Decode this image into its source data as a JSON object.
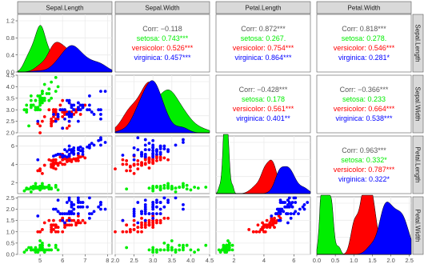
{
  "chart_data": {
    "type": "scatter",
    "variables": [
      "Sepal.Length",
      "Sepal.Width",
      "Petal.Length",
      "Petal.Width"
    ],
    "colors": {
      "setosa": "#00ee00",
      "versicolor": "#ff0000",
      "virginica": "#0000ff",
      "overall": "#595959",
      "panel_bg": "#ffffff",
      "grid": "#ebebeb",
      "strip_bg": "#d9d9d9"
    },
    "ranges": {
      "Sepal.Length": [
        4.0,
        8.2
      ],
      "Sepal.Width": [
        2.0,
        4.5
      ],
      "Petal.Length": [
        0.8,
        7.1
      ],
      "Petal.Width": [
        0.0,
        2.55
      ]
    },
    "x_ticks": {
      "Sepal.Length": [
        "5",
        "6",
        "7",
        "8"
      ],
      "Sepal.Width": [
        "2.0",
        "2.5",
        "3.0",
        "3.5",
        "4.0",
        "4.5"
      ],
      "Petal.Length": [
        "2",
        "4",
        "6"
      ],
      "Petal.Width": [
        "0.0",
        "0.5",
        "1.0",
        "1.5",
        "2.0",
        "2.5"
      ]
    },
    "y_ticks": {
      "Sepal.Length": [
        "0.0",
        "0.4",
        "0.8",
        "1.2"
      ],
      "Sepal.Width": [
        "2.0",
        "2.5",
        "3.0",
        "3.5",
        "4.0",
        "4.5"
      ],
      "Petal.Length": [
        "2",
        "4",
        "6"
      ],
      "Petal.Width": [
        "0.0",
        "0.5",
        "1.0",
        "1.5",
        "2.0",
        "2.5"
      ]
    },
    "density_ylim": [
      0,
      1.35
    ],
    "correlations": [
      {
        "row": 0,
        "col": 1,
        "lines": [
          "Corr: −0.118",
          "setosa: 0.743***",
          "versicolor: 0.526***",
          "virginica: 0.457***"
        ]
      },
      {
        "row": 0,
        "col": 2,
        "lines": [
          "Corr: 0.872***",
          "setosa: 0.267.",
          "versicolor: 0.754***",
          "virginica: 0.864***"
        ]
      },
      {
        "row": 0,
        "col": 3,
        "lines": [
          "Corr: 0.818***",
          "setosa: 0.278.",
          "versicolor: 0.546***",
          "virginica: 0.281*"
        ]
      },
      {
        "row": 1,
        "col": 2,
        "lines": [
          "Corr: −0.428***",
          "setosa: 0.178",
          "versicolor: 0.561***",
          "virginica: 0.401**"
        ]
      },
      {
        "row": 1,
        "col": 3,
        "lines": [
          "Corr: −0.366***",
          "setosa: 0.233",
          "versicolor: 0.664***",
          "virginica: 0.538***"
        ]
      },
      {
        "row": 2,
        "col": 3,
        "lines": [
          "Corr: 0.963***",
          "setosa: 0.332*",
          "versicolor: 0.787***",
          "virginica: 0.322*"
        ]
      }
    ],
    "species": [
      "setosa",
      "versicolor",
      "virginica"
    ],
    "series": [
      {
        "name": "setosa",
        "sepal_length": [
          5.1,
          4.9,
          4.7,
          4.6,
          5.0,
          5.4,
          4.6,
          5.0,
          4.4,
          4.9,
          5.4,
          4.8,
          4.8,
          4.3,
          5.8,
          5.7,
          5.4,
          5.1,
          5.7,
          5.1,
          5.4,
          5.1,
          4.6,
          5.1,
          4.8,
          5.0,
          5.0,
          5.2,
          5.2,
          4.7,
          4.8,
          5.4,
          5.2,
          5.5,
          4.9,
          5.0,
          5.5,
          4.9,
          4.4,
          5.1,
          5.0,
          4.5,
          4.4,
          5.0,
          5.1,
          4.8,
          5.1,
          4.6,
          5.3,
          5.0
        ],
        "sepal_width": [
          3.5,
          3.0,
          3.2,
          3.1,
          3.6,
          3.9,
          3.4,
          3.4,
          2.9,
          3.1,
          3.7,
          3.4,
          3.0,
          3.0,
          4.0,
          4.4,
          3.9,
          3.5,
          3.8,
          3.8,
          3.4,
          3.7,
          3.6,
          3.3,
          3.4,
          3.0,
          3.4,
          3.5,
          3.4,
          3.2,
          3.1,
          3.4,
          4.1,
          4.2,
          3.1,
          3.2,
          3.5,
          3.6,
          3.0,
          3.4,
          3.5,
          2.3,
          3.2,
          3.5,
          3.8,
          3.0,
          3.8,
          3.2,
          3.7,
          3.3
        ],
        "petal_length": [
          1.4,
          1.4,
          1.3,
          1.5,
          1.4,
          1.7,
          1.4,
          1.5,
          1.4,
          1.5,
          1.5,
          1.6,
          1.4,
          1.1,
          1.2,
          1.5,
          1.3,
          1.4,
          1.7,
          1.5,
          1.7,
          1.5,
          1.0,
          1.7,
          1.9,
          1.6,
          1.6,
          1.5,
          1.4,
          1.6,
          1.6,
          1.5,
          1.5,
          1.4,
          1.5,
          1.2,
          1.3,
          1.4,
          1.3,
          1.5,
          1.3,
          1.3,
          1.3,
          1.6,
          1.9,
          1.4,
          1.6,
          1.4,
          1.5,
          1.4
        ],
        "petal_width": [
          0.2,
          0.2,
          0.2,
          0.2,
          0.2,
          0.4,
          0.3,
          0.2,
          0.2,
          0.1,
          0.2,
          0.2,
          0.1,
          0.1,
          0.2,
          0.4,
          0.4,
          0.3,
          0.3,
          0.3,
          0.2,
          0.4,
          0.2,
          0.5,
          0.2,
          0.2,
          0.4,
          0.2,
          0.2,
          0.2,
          0.2,
          0.4,
          0.1,
          0.2,
          0.2,
          0.2,
          0.2,
          0.1,
          0.2,
          0.2,
          0.3,
          0.3,
          0.2,
          0.6,
          0.4,
          0.3,
          0.2,
          0.2,
          0.2,
          0.2
        ]
      },
      {
        "name": "versicolor",
        "sepal_length": [
          7.0,
          6.4,
          6.9,
          5.5,
          6.5,
          5.7,
          6.3,
          4.9,
          6.6,
          5.2,
          5.0,
          5.9,
          6.0,
          6.1,
          5.6,
          6.7,
          5.6,
          5.8,
          6.2,
          5.6,
          5.9,
          6.1,
          6.3,
          6.1,
          6.4,
          6.6,
          6.8,
          6.7,
          6.0,
          5.7,
          5.5,
          5.5,
          5.8,
          6.0,
          5.4,
          6.0,
          6.7,
          6.3,
          5.6,
          5.5,
          5.5,
          6.1,
          5.8,
          5.0,
          5.6,
          5.7,
          5.7,
          6.2,
          5.1,
          5.7
        ],
        "sepal_width": [
          3.2,
          3.2,
          3.1,
          2.3,
          2.8,
          2.8,
          3.3,
          2.4,
          2.9,
          2.7,
          2.0,
          3.0,
          2.2,
          2.9,
          2.9,
          3.1,
          3.0,
          2.7,
          2.2,
          2.5,
          3.2,
          2.8,
          2.5,
          2.8,
          2.9,
          3.0,
          2.8,
          3.0,
          2.9,
          2.6,
          2.4,
          2.4,
          2.7,
          2.7,
          3.0,
          3.4,
          3.1,
          2.3,
          3.0,
          2.5,
          2.6,
          3.0,
          2.6,
          2.3,
          2.7,
          3.0,
          2.9,
          2.9,
          2.5,
          2.8
        ],
        "petal_length": [
          4.7,
          4.5,
          4.9,
          4.0,
          4.6,
          4.5,
          4.7,
          3.3,
          4.6,
          3.9,
          3.5,
          4.2,
          4.0,
          4.7,
          3.6,
          4.4,
          4.5,
          4.1,
          4.5,
          3.9,
          4.8,
          4.0,
          4.9,
          4.7,
          4.3,
          4.4,
          4.8,
          5.0,
          4.5,
          3.5,
          3.8,
          3.7,
          3.9,
          5.1,
          4.5,
          4.5,
          4.7,
          4.4,
          4.1,
          4.0,
          4.4,
          4.6,
          4.0,
          3.3,
          4.2,
          4.2,
          4.2,
          4.3,
          3.0,
          4.1
        ],
        "petal_width": [
          1.4,
          1.5,
          1.5,
          1.3,
          1.5,
          1.3,
          1.6,
          1.0,
          1.3,
          1.4,
          1.0,
          1.5,
          1.0,
          1.4,
          1.3,
          1.4,
          1.5,
          1.0,
          1.5,
          1.1,
          1.8,
          1.3,
          1.5,
          1.2,
          1.3,
          1.4,
          1.4,
          1.7,
          1.5,
          1.0,
          1.1,
          1.0,
          1.2,
          1.6,
          1.5,
          1.6,
          1.5,
          1.3,
          1.3,
          1.3,
          1.2,
          1.4,
          1.2,
          1.0,
          1.3,
          1.2,
          1.3,
          1.3,
          1.1,
          1.3
        ]
      },
      {
        "name": "virginica",
        "sepal_length": [
          6.3,
          5.8,
          7.1,
          6.3,
          6.5,
          7.6,
          4.9,
          7.3,
          6.7,
          7.2,
          6.5,
          6.4,
          6.8,
          5.7,
          5.8,
          6.4,
          6.5,
          7.7,
          7.7,
          6.0,
          6.9,
          5.6,
          7.7,
          6.3,
          6.7,
          7.2,
          6.2,
          6.1,
          6.4,
          7.2,
          7.4,
          7.9,
          6.4,
          6.3,
          6.1,
          7.7,
          6.3,
          6.4,
          6.0,
          6.9,
          6.7,
          6.9,
          5.8,
          6.8,
          6.7,
          6.7,
          6.3,
          6.5,
          6.2,
          5.9
        ],
        "sepal_width": [
          3.3,
          2.7,
          3.0,
          2.9,
          3.0,
          3.0,
          2.5,
          2.9,
          2.5,
          3.6,
          3.2,
          2.7,
          3.0,
          2.5,
          2.8,
          3.2,
          3.0,
          3.8,
          2.6,
          2.2,
          3.2,
          2.8,
          2.8,
          2.7,
          3.3,
          3.2,
          2.8,
          3.0,
          2.8,
          3.0,
          2.8,
          3.8,
          2.8,
          2.8,
          2.6,
          3.0,
          3.4,
          3.1,
          3.0,
          3.1,
          3.1,
          3.1,
          2.7,
          3.2,
          3.3,
          3.0,
          2.5,
          3.0,
          3.4,
          3.0
        ],
        "petal_length": [
          6.0,
          5.1,
          5.9,
          5.6,
          5.8,
          6.6,
          4.5,
          6.3,
          5.8,
          6.1,
          5.1,
          5.3,
          5.5,
          5.0,
          5.1,
          5.3,
          5.5,
          6.7,
          6.9,
          5.0,
          5.7,
          4.9,
          6.7,
          4.9,
          5.7,
          6.0,
          4.8,
          4.9,
          5.6,
          5.8,
          6.1,
          6.4,
          5.6,
          5.1,
          5.6,
          6.1,
          5.6,
          5.5,
          4.8,
          5.4,
          5.6,
          5.1,
          5.1,
          5.9,
          5.7,
          5.2,
          5.0,
          5.2,
          5.4,
          5.1
        ],
        "petal_width": [
          2.5,
          1.9,
          2.1,
          1.8,
          2.2,
          2.1,
          1.7,
          1.8,
          1.8,
          2.5,
          2.0,
          1.9,
          2.1,
          2.0,
          2.4,
          2.3,
          1.8,
          2.2,
          2.3,
          1.5,
          2.3,
          2.0,
          2.0,
          1.8,
          2.1,
          1.8,
          1.8,
          1.8,
          2.1,
          1.6,
          1.9,
          2.0,
          2.2,
          1.5,
          1.4,
          2.3,
          2.4,
          1.8,
          1.8,
          2.1,
          2.4,
          2.3,
          1.9,
          2.3,
          2.5,
          2.3,
          1.9,
          2.0,
          2.3,
          1.8
        ]
      }
    ]
  }
}
